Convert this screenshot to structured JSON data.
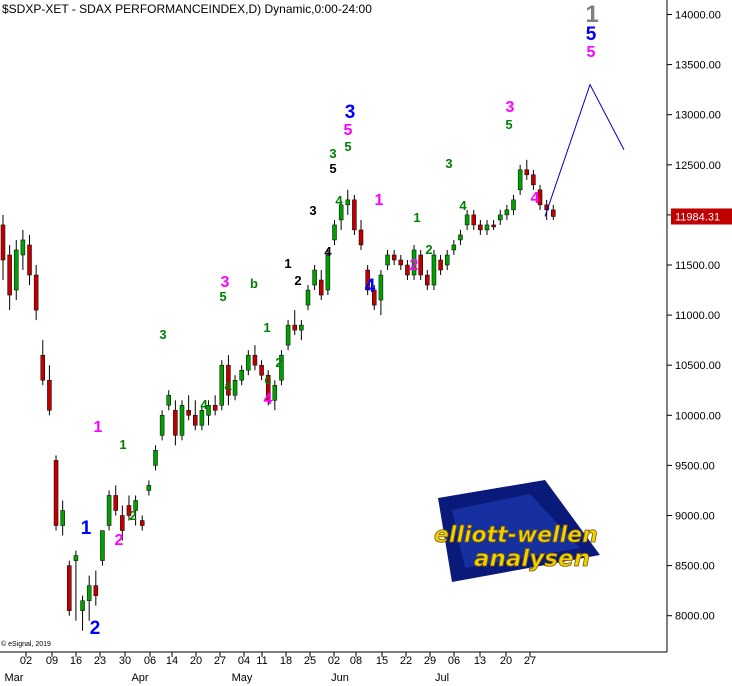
{
  "chart_data": {
    "type": "candlestick",
    "title": "$SDXP-XET - SDAX PERFORMANCEINDEX,D) Dynamic,0:00-24:00",
    "copyright": "© eSignal, 2019",
    "y_ticks": [
      "14000.00",
      "13500.00",
      "13000.00",
      "12500.00",
      "12000.00",
      "11500.00",
      "11000.00",
      "10500.00",
      "10000.00",
      "9500.00",
      "9000.00",
      "8500.00",
      "8000.00"
    ],
    "last_price": "11984.31",
    "x_day_labels": [
      "02",
      "09",
      "16",
      "23",
      "30",
      "06",
      "14",
      "20",
      "27",
      "04",
      "11",
      "18",
      "25",
      "02",
      "08",
      "15",
      "22",
      "29",
      "06",
      "13",
      "20",
      "27"
    ],
    "x_month_labels": [
      "Mar",
      "Apr",
      "May",
      "Jun",
      "Jul"
    ],
    "logo_text": [
      "elliott-wellen",
      "analysen"
    ],
    "wave_labels": [
      {
        "text": "1",
        "color": "#ff00ff"
      },
      {
        "text": "1",
        "color": "#008000"
      },
      {
        "text": "1",
        "color": "#0000ff"
      },
      {
        "text": "2",
        "color": "#ff00ff"
      },
      {
        "text": "2",
        "color": "#008000"
      },
      {
        "text": "2",
        "color": "#0000ff"
      },
      {
        "text": "3",
        "color": "#008000"
      },
      {
        "text": "4",
        "color": "#008000"
      },
      {
        "text": "a",
        "color": "#008000"
      },
      {
        "text": "3",
        "color": "#ff00ff"
      },
      {
        "text": "5",
        "color": "#008000"
      },
      {
        "text": "b",
        "color": "#008000"
      },
      {
        "text": "1",
        "color": "#008000"
      },
      {
        "text": "2",
        "color": "#008000"
      },
      {
        "text": "c",
        "color": "#008000"
      },
      {
        "text": "4",
        "color": "#ff00ff"
      },
      {
        "text": "1",
        "color": "#000000"
      },
      {
        "text": "2",
        "color": "#000000"
      },
      {
        "text": "3",
        "color": "#000000"
      },
      {
        "text": "4",
        "color": "#000000"
      },
      {
        "text": "3",
        "color": "#008000"
      },
      {
        "text": "5",
        "color": "#000000"
      },
      {
        "text": "4",
        "color": "#008000"
      },
      {
        "text": "5",
        "color": "#008000"
      },
      {
        "text": "3",
        "color": "#0000ff"
      },
      {
        "text": "5",
        "color": "#ff00ff"
      },
      {
        "text": "4",
        "color": "#0000ff"
      },
      {
        "text": "1",
        "color": "#ff00ff"
      },
      {
        "text": "2",
        "color": "#ff00ff"
      },
      {
        "text": "1",
        "color": "#008000"
      },
      {
        "text": "2",
        "color": "#008000"
      },
      {
        "text": "3",
        "color": "#008000"
      },
      {
        "text": "4",
        "color": "#008000"
      },
      {
        "text": "3",
        "color": "#ff00ff"
      },
      {
        "text": "5",
        "color": "#008000"
      },
      {
        "text": "4",
        "color": "#ff00ff"
      },
      {
        "text": "1",
        "color": "#808080"
      },
      {
        "text": "5",
        "color": "#0000ff"
      },
      {
        "text": "5",
        "color": "#ff00ff"
      }
    ],
    "candles": [
      {
        "o": 11900,
        "h": 12000,
        "l": 11350,
        "c": 11550
      },
      {
        "o": 11600,
        "h": 11700,
        "l": 11050,
        "c": 11200
      },
      {
        "o": 11250,
        "h": 11750,
        "l": 11150,
        "c": 11650
      },
      {
        "o": 11600,
        "h": 11850,
        "l": 11450,
        "c": 11750
      },
      {
        "o": 11700,
        "h": 11800,
        "l": 11300,
        "c": 11400
      },
      {
        "o": 11400,
        "h": 11500,
        "l": 10950,
        "c": 11050
      },
      {
        "o": 10600,
        "h": 10750,
        "l": 10300,
        "c": 10350
      },
      {
        "o": 10350,
        "h": 10500,
        "l": 10000,
        "c": 10050
      },
      {
        "o": 9550,
        "h": 9600,
        "l": 8850,
        "c": 8900
      },
      {
        "o": 8900,
        "h": 9150,
        "l": 8800,
        "c": 9050
      },
      {
        "o": 8500,
        "h": 8550,
        "l": 8000,
        "c": 8050
      },
      {
        "o": 8550,
        "h": 8650,
        "l": 7950,
        "c": 8600
      },
      {
        "o": 8050,
        "h": 8200,
        "l": 7850,
        "c": 8150
      },
      {
        "o": 8150,
        "h": 8400,
        "l": 7950,
        "c": 8300
      },
      {
        "o": 8300,
        "h": 8450,
        "l": 8100,
        "c": 8200
      },
      {
        "o": 8550,
        "h": 8850,
        "l": 8500,
        "c": 8850
      },
      {
        "o": 8900,
        "h": 9250,
        "l": 8850,
        "c": 9200
      },
      {
        "o": 9200,
        "h": 9300,
        "l": 9000,
        "c": 9050
      },
      {
        "o": 9000,
        "h": 9100,
        "l": 8750,
        "c": 8850
      },
      {
        "o": 9100,
        "h": 9200,
        "l": 8950,
        "c": 9000
      },
      {
        "o": 9050,
        "h": 9200,
        "l": 8900,
        "c": 9150
      },
      {
        "o": 8950,
        "h": 9000,
        "l": 8850,
        "c": 8900
      },
      {
        "o": 9250,
        "h": 9350,
        "l": 9200,
        "c": 9300
      },
      {
        "o": 9500,
        "h": 9700,
        "l": 9450,
        "c": 9650
      },
      {
        "o": 9800,
        "h": 10050,
        "l": 9750,
        "c": 10000
      },
      {
        "o": 10100,
        "h": 10250,
        "l": 10050,
        "c": 10200
      },
      {
        "o": 10050,
        "h": 10150,
        "l": 9700,
        "c": 9800
      },
      {
        "o": 9800,
        "h": 10150,
        "l": 9750,
        "c": 10100
      },
      {
        "o": 10050,
        "h": 10200,
        "l": 9950,
        "c": 10000
      },
      {
        "o": 10000,
        "h": 10150,
        "l": 9850,
        "c": 9900
      },
      {
        "o": 9900,
        "h": 10100,
        "l": 9850,
        "c": 10050
      },
      {
        "o": 10000,
        "h": 10150,
        "l": 9900,
        "c": 10100
      },
      {
        "o": 10100,
        "h": 10200,
        "l": 10000,
        "c": 10050
      },
      {
        "o": 10100,
        "h": 10550,
        "l": 10050,
        "c": 10500
      },
      {
        "o": 10500,
        "h": 10600,
        "l": 10100,
        "c": 10200
      },
      {
        "o": 10200,
        "h": 10400,
        "l": 10150,
        "c": 10350
      },
      {
        "o": 10350,
        "h": 10500,
        "l": 10300,
        "c": 10450
      },
      {
        "o": 10450,
        "h": 10650,
        "l": 10400,
        "c": 10600
      },
      {
        "o": 10600,
        "h": 10700,
        "l": 10450,
        "c": 10500
      },
      {
        "o": 10500,
        "h": 10550,
        "l": 10350,
        "c": 10400
      },
      {
        "o": 10400,
        "h": 10450,
        "l": 10100,
        "c": 10150
      },
      {
        "o": 10150,
        "h": 10350,
        "l": 10050,
        "c": 10300
      },
      {
        "o": 10350,
        "h": 10650,
        "l": 10300,
        "c": 10600
      },
      {
        "o": 10700,
        "h": 10950,
        "l": 10650,
        "c": 10900
      },
      {
        "o": 10900,
        "h": 11050,
        "l": 10800,
        "c": 10850
      },
      {
        "o": 10850,
        "h": 10950,
        "l": 10750,
        "c": 10900
      },
      {
        "o": 11100,
        "h": 11300,
        "l": 11050,
        "c": 11250
      },
      {
        "o": 11300,
        "h": 11500,
        "l": 11250,
        "c": 11450
      },
      {
        "o": 11350,
        "h": 11450,
        "l": 11150,
        "c": 11200
      },
      {
        "o": 11250,
        "h": 11650,
        "l": 11200,
        "c": 11600
      },
      {
        "o": 11750,
        "h": 11950,
        "l": 11700,
        "c": 11900
      },
      {
        "o": 11950,
        "h": 12150,
        "l": 11850,
        "c": 12100
      },
      {
        "o": 12100,
        "h": 12250,
        "l": 12000,
        "c": 12150
      },
      {
        "o": 12150,
        "h": 12200,
        "l": 11800,
        "c": 11850
      },
      {
        "o": 11850,
        "h": 11950,
        "l": 11650,
        "c": 11700
      },
      {
        "o": 11450,
        "h": 11500,
        "l": 11200,
        "c": 11250
      },
      {
        "o": 11250,
        "h": 11300,
        "l": 11050,
        "c": 11100
      },
      {
        "o": 11150,
        "h": 11450,
        "l": 11000,
        "c": 11400
      },
      {
        "o": 11500,
        "h": 11650,
        "l": 11450,
        "c": 11600
      },
      {
        "o": 11600,
        "h": 11650,
        "l": 11500,
        "c": 11550
      },
      {
        "o": 11550,
        "h": 11600,
        "l": 11450,
        "c": 11500
      },
      {
        "o": 11500,
        "h": 11550,
        "l": 11350,
        "c": 11400
      },
      {
        "o": 11400,
        "h": 11700,
        "l": 11350,
        "c": 11650
      },
      {
        "o": 11600,
        "h": 11650,
        "l": 11350,
        "c": 11400
      },
      {
        "o": 11400,
        "h": 11450,
        "l": 11250,
        "c": 11300
      },
      {
        "o": 11300,
        "h": 11650,
        "l": 11250,
        "c": 11600
      },
      {
        "o": 11550,
        "h": 11600,
        "l": 11400,
        "c": 11450
      },
      {
        "o": 11500,
        "h": 11650,
        "l": 11450,
        "c": 11600
      },
      {
        "o": 11650,
        "h": 11750,
        "l": 11600,
        "c": 11700
      },
      {
        "o": 11750,
        "h": 11850,
        "l": 11700,
        "c": 11800
      },
      {
        "o": 11900,
        "h": 12050,
        "l": 11850,
        "c": 12000
      },
      {
        "o": 12000,
        "h": 12050,
        "l": 11850,
        "c": 11900
      },
      {
        "o": 11900,
        "h": 11950,
        "l": 11800,
        "c": 11850
      },
      {
        "o": 11850,
        "h": 11950,
        "l": 11800,
        "c": 11900
      },
      {
        "o": 11900,
        "h": 11950,
        "l": 11850,
        "c": 11880
      },
      {
        "o": 11950,
        "h": 12050,
        "l": 11900,
        "c": 12000
      },
      {
        "o": 12000,
        "h": 12100,
        "l": 11950,
        "c": 12050
      },
      {
        "o": 12050,
        "h": 12200,
        "l": 12000,
        "c": 12150
      },
      {
        "o": 12250,
        "h": 12500,
        "l": 12200,
        "c": 12450
      },
      {
        "o": 12450,
        "h": 12550,
        "l": 12350,
        "c": 12400
      },
      {
        "o": 12400,
        "h": 12450,
        "l": 12250,
        "c": 12300
      },
      {
        "o": 12250,
        "h": 12300,
        "l": 12050,
        "c": 12100
      },
      {
        "o": 12100,
        "h": 12150,
        "l": 11950,
        "c": 12050
      },
      {
        "o": 12050,
        "h": 12100,
        "l": 11950,
        "c": 11984
      }
    ],
    "projection": [
      11984.31,
      13300,
      12650
    ],
    "colors": {
      "up": "#00a000",
      "down": "#c00000",
      "wick": "#000000",
      "projection": "#0000c0",
      "price_box": "#c00000"
    }
  }
}
